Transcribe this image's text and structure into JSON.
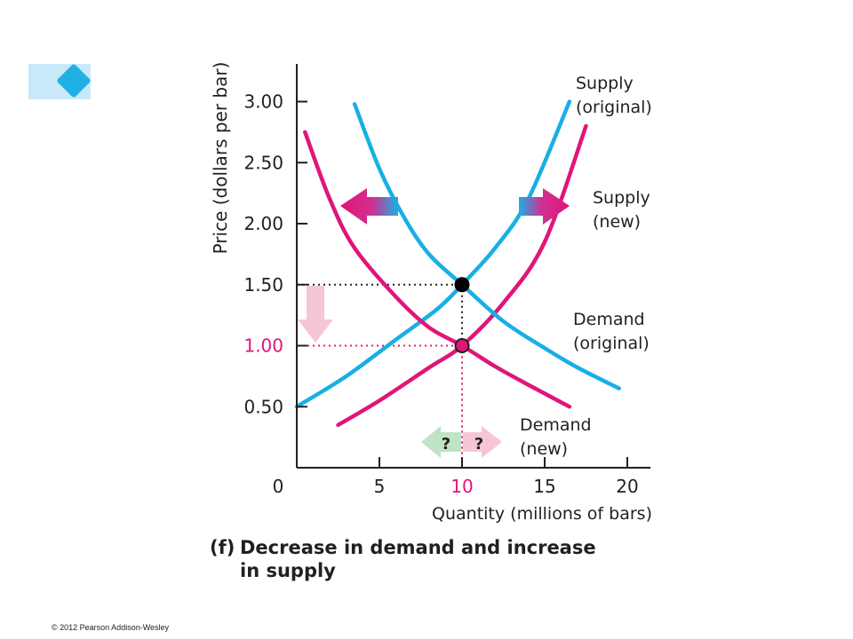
{
  "chart_data": {
    "type": "line",
    "xlabel": "Quantity (millions of bars)",
    "ylabel": "Price (dollars per bar)",
    "xlim": [
      0,
      21
    ],
    "ylim": [
      0,
      3.3
    ],
    "x_ticks": [
      "0",
      "5",
      "10",
      "15",
      "20"
    ],
    "y_ticks": [
      "0.50",
      "1.00",
      "1.50",
      "2.00",
      "2.50",
      "3.00"
    ],
    "y_tick_values": [
      0.5,
      1.0,
      1.5,
      2.0,
      2.5,
      3.0
    ],
    "x_tick_values": [
      0,
      5,
      10,
      15,
      20
    ],
    "highlight_tick": "1.00",
    "series": [
      {
        "name": "Supply (original)",
        "color": "#19afe6",
        "points": [
          [
            0,
            0.5
          ],
          [
            3,
            0.75
          ],
          [
            6,
            1.05
          ],
          [
            8.5,
            1.3
          ],
          [
            10,
            1.5
          ],
          [
            12,
            1.8
          ],
          [
            14,
            2.2
          ],
          [
            16.5,
            3.0
          ]
        ]
      },
      {
        "name": "Supply (new)",
        "color": "#e0157a",
        "points": [
          [
            2.5,
            0.35
          ],
          [
            5,
            0.55
          ],
          [
            8,
            0.82
          ],
          [
            10,
            1.0
          ],
          [
            12.5,
            1.35
          ],
          [
            15,
            1.85
          ],
          [
            17.5,
            2.8
          ]
        ]
      },
      {
        "name": "Demand (original)",
        "color": "#19afe6",
        "points": [
          [
            3.5,
            2.98
          ],
          [
            5,
            2.45
          ],
          [
            6.5,
            2.05
          ],
          [
            8,
            1.75
          ],
          [
            10,
            1.5
          ],
          [
            12.5,
            1.2
          ],
          [
            15,
            0.98
          ],
          [
            17,
            0.82
          ],
          [
            19.5,
            0.65
          ]
        ]
      },
      {
        "name": "Demand (new)",
        "color": "#e0157a",
        "points": [
          [
            0.5,
            2.75
          ],
          [
            2,
            2.2
          ],
          [
            3.5,
            1.8
          ],
          [
            6,
            1.4
          ],
          [
            8,
            1.15
          ],
          [
            10,
            1.0
          ],
          [
            12,
            0.83
          ],
          [
            14,
            0.68
          ],
          [
            16.5,
            0.5
          ]
        ]
      }
    ],
    "equilibria": [
      {
        "x": 10,
        "y": 1.5,
        "fill": "#000000",
        "stroke": "#000000"
      },
      {
        "x": 10,
        "y": 1.0,
        "fill": "#e0157a",
        "stroke": "#231f20"
      }
    ],
    "curve_labels": [
      {
        "line1": "Supply",
        "line2": "(original)"
      },
      {
        "line1": "Supply",
        "line2": "(new)"
      },
      {
        "line1": "Demand",
        "line2": "(original)"
      },
      {
        "line1": "Demand",
        "line2": "(new)"
      }
    ],
    "question_marks": [
      "?",
      "?"
    ],
    "colors": {
      "cyan": "#19afe6",
      "magenta": "#e0157a",
      "axis": "#231f20"
    }
  },
  "caption": {
    "label": "(f)",
    "line1": "Decrease in demand and increase",
    "line2": "in supply"
  },
  "copyright": "© 2012 Pearson Addison-Wesley"
}
